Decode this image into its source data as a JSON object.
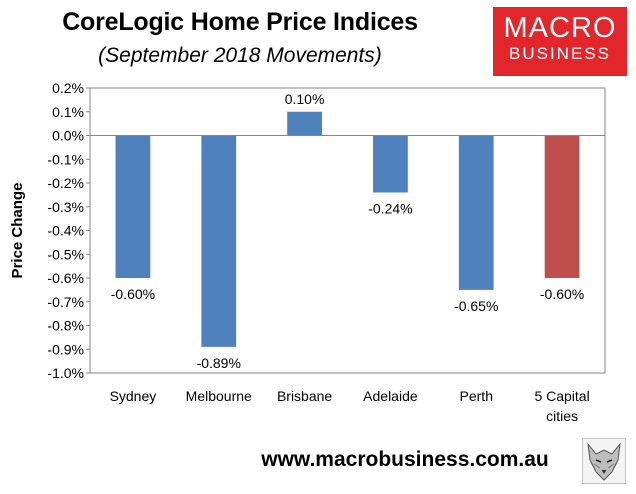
{
  "header": {
    "title": "CoreLogic Home Price Indices",
    "subtitle": "(September 2018 Movements)"
  },
  "logo": {
    "line1": "MACRO",
    "line2": "BUSINESS"
  },
  "footer": {
    "website": "www.macrobusiness.com.au"
  },
  "chart_data": {
    "type": "bar",
    "categories": [
      "Sydney",
      "Melbourne",
      "Brisbane",
      "Adelaide",
      "Perth",
      "5 Capital\ncities"
    ],
    "values": [
      -0.6,
      -0.89,
      0.1,
      -0.24,
      -0.65,
      -0.6
    ],
    "data_labels": [
      "-0.60%",
      "-0.89%",
      "0.10%",
      "-0.24%",
      "-0.65%",
      "-0.60%"
    ],
    "colors": [
      "#4f81bd",
      "#4f81bd",
      "#4f81bd",
      "#4f81bd",
      "#4f81bd",
      "#c0504d"
    ],
    "ylabel": "Price Change",
    "xlabel": "",
    "ylim": [
      -1.0,
      0.2
    ],
    "yticks": [
      0.2,
      0.1,
      0.0,
      -0.1,
      -0.2,
      -0.3,
      -0.4,
      -0.5,
      -0.6,
      -0.7,
      -0.8,
      -0.9,
      -1.0
    ],
    "ytick_labels": [
      "0.2%",
      "0.1%",
      "0.0%",
      "-0.1%",
      "-0.2%",
      "-0.3%",
      "-0.4%",
      "-0.5%",
      "-0.6%",
      "-0.7%",
      "-0.8%",
      "-0.9%",
      "-1.0%"
    ],
    "grid": false,
    "legend": "none"
  }
}
